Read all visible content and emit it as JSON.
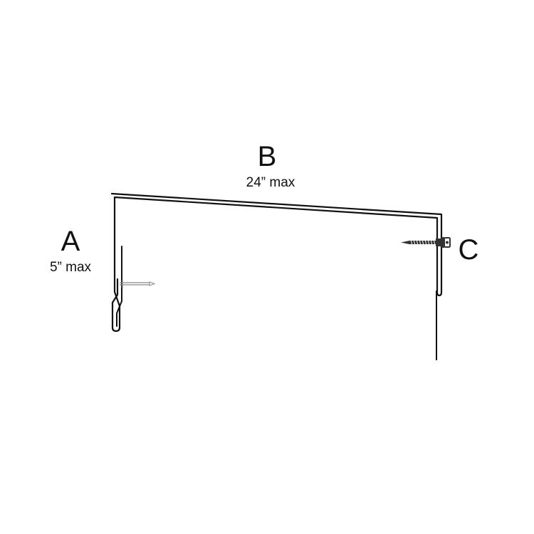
{
  "labels": {
    "a": {
      "letter": "A",
      "dimension": "5” max"
    },
    "b": {
      "letter": "B",
      "dimension": "24” max"
    },
    "c": {
      "letter": "C"
    }
  },
  "colors": {
    "line": "#111111",
    "nail": "#8a8a8a",
    "screw": "#333333",
    "background": "#ffffff"
  },
  "icons": {
    "nail": "nail-icon",
    "screw": "screw-icon"
  }
}
